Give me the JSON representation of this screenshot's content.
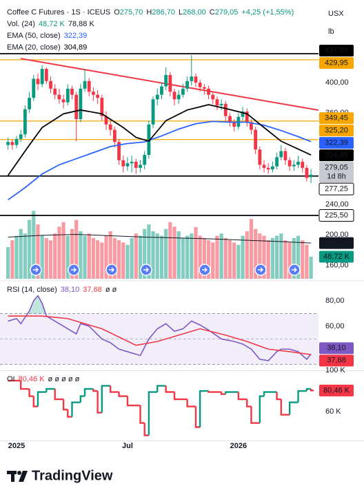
{
  "chart_data": [
    {
      "type": "candlestick",
      "title": "Coffee C Futures · 1S · ICEUS",
      "ohlc_header": [
        {
          "key": "O",
          "text": "275,70"
        },
        {
          "key": "H",
          "text": "286,70"
        },
        {
          "key": "L",
          "text": "268,00"
        },
        {
          "key": "C",
          "text": "279,05"
        }
      ],
      "change": "+4,25 (+1,55%)",
      "currency": "USX",
      "unit": "lb",
      "up_color": "#089981",
      "down_color": "#f23645",
      "xlim": [
        -3.88,
        70.76
      ],
      "xticks": [
        {
          "value": 0,
          "label": "2025"
        },
        {
          "value": 26,
          "label": "Jul"
        },
        {
          "value": 52,
          "label": "2026"
        }
      ],
      "ylim": [
        142.3,
        508.5
      ],
      "yticks": [
        {
          "value": 400,
          "label": "400,00"
        },
        {
          "value": 360,
          "label": "360,00"
        },
        {
          "value": 240,
          "label": "240,00"
        },
        {
          "value": 200,
          "label": "200,00"
        },
        {
          "value": 160,
          "label": "160,00"
        }
      ],
      "x": [
        -2,
        -1,
        0,
        1,
        2,
        3,
        4,
        5,
        6,
        7,
        8,
        9,
        10,
        11,
        12,
        13,
        14,
        15,
        16,
        17,
        18,
        19,
        20,
        21,
        22,
        23,
        24,
        25,
        26,
        27,
        28,
        29,
        30,
        31,
        32,
        33,
        34,
        35,
        36,
        37,
        38,
        39,
        40,
        41,
        42,
        43,
        44,
        45,
        46,
        47,
        48,
        49,
        50,
        51,
        52,
        53,
        54,
        55,
        56,
        57,
        58,
        59,
        60,
        61,
        62,
        63,
        64,
        65,
        66,
        67,
        68,
        69
      ],
      "ohlc": [
        [
          318,
          328,
          312,
          322
        ],
        [
          322,
          325,
          312,
          318
        ],
        [
          318,
          330,
          314,
          326
        ],
        [
          326,
          338,
          322,
          332
        ],
        [
          332,
          370,
          328,
          365
        ],
        [
          365,
          388,
          360,
          380
        ],
        [
          380,
          410,
          376,
          405
        ],
        [
          405,
          412,
          390,
          398
        ],
        [
          398,
          423,
          394,
          418
        ],
        [
          418,
          420,
          398,
          402
        ],
        [
          402,
          408,
          386,
          392
        ],
        [
          392,
          398,
          378,
          384
        ],
        [
          384,
          392,
          372,
          378
        ],
        [
          378,
          384,
          366,
          374
        ],
        [
          374,
          398,
          370,
          392
        ],
        [
          392,
          396,
          378,
          384
        ],
        [
          384,
          388,
          323,
          352
        ],
        [
          352,
          398,
          348,
          392
        ],
        [
          392,
          418,
          388,
          402
        ],
        [
          402,
          406,
          382,
          388
        ],
        [
          388,
          394,
          376,
          384
        ],
        [
          384,
          390,
          372,
          380
        ],
        [
          380,
          384,
          350,
          356
        ],
        [
          356,
          362,
          338,
          345
        ],
        [
          345,
          352,
          330,
          338
        ],
        [
          338,
          342,
          315,
          322
        ],
        [
          322,
          326,
          292,
          298
        ],
        [
          298,
          304,
          282,
          290
        ],
        [
          290,
          302,
          284,
          294
        ],
        [
          294,
          304,
          282,
          296
        ],
        [
          296,
          300,
          280,
          288
        ],
        [
          288,
          298,
          282,
          292
        ],
        [
          292,
          310,
          286,
          305
        ],
        [
          305,
          350,
          300,
          345
        ],
        [
          345,
          382,
          340,
          378
        ],
        [
          378,
          392,
          370,
          384
        ],
        [
          384,
          400,
          378,
          395
        ],
        [
          395,
          420,
          390,
          410
        ],
        [
          410,
          414,
          382,
          388
        ],
        [
          388,
          392,
          370,
          378
        ],
        [
          378,
          390,
          372,
          384
        ],
        [
          384,
          398,
          380,
          392
        ],
        [
          392,
          408,
          388,
          402
        ],
        [
          402,
          436,
          396,
          408
        ],
        [
          408,
          412,
          394,
          400
        ],
        [
          400,
          404,
          388,
          394
        ],
        [
          394,
          398,
          384,
          392
        ],
        [
          392,
          396,
          378,
          384
        ],
        [
          384,
          388,
          372,
          378
        ],
        [
          378,
          382,
          364,
          370
        ],
        [
          370,
          378,
          364,
          372
        ],
        [
          372,
          376,
          350,
          356
        ],
        [
          356,
          360,
          342,
          348
        ],
        [
          348,
          352,
          336,
          342
        ],
        [
          342,
          360,
          338,
          355
        ],
        [
          355,
          368,
          350,
          362
        ],
        [
          362,
          366,
          342,
          348
        ],
        [
          348,
          352,
          332,
          338
        ],
        [
          338,
          342,
          306,
          312
        ],
        [
          312,
          316,
          286,
          292
        ],
        [
          292,
          298,
          282,
          288
        ],
        [
          288,
          294,
          280,
          286
        ],
        [
          286,
          296,
          282,
          290
        ],
        [
          290,
          308,
          286,
          302
        ],
        [
          302,
          318,
          298,
          310
        ],
        [
          310,
          314,
          292,
          298
        ],
        [
          298,
          302,
          284,
          290
        ],
        [
          290,
          298,
          284,
          292
        ],
        [
          292,
          304,
          288,
          296
        ],
        [
          296,
          300,
          282,
          288
        ],
        [
          288,
          292,
          270,
          274.8
        ],
        [
          275.7,
          286.7,
          268,
          279.05
        ]
      ],
      "lines": [
        {
          "name": "EMA (50, close)",
          "color": "#2962ff",
          "last_label": "322,39",
          "x": [
            -2,
            2,
            6,
            10,
            14,
            18,
            22,
            26,
            30,
            34,
            38,
            42,
            46,
            50,
            54,
            58,
            62,
            66,
            69
          ],
          "values": [
            246,
            262,
            280,
            292,
            300,
            308,
            316,
            320,
            322,
            330,
            339,
            346,
            349,
            348,
            348,
            344,
            337,
            329,
            322.39
          ]
        },
        {
          "name": "EMA (20, close)",
          "color": "#000000",
          "last_label": "304,89",
          "x": [
            -2,
            3,
            6,
            11,
            15,
            20,
            25,
            28,
            31,
            35,
            40,
            45,
            49,
            54,
            58,
            62,
            69
          ],
          "values": [
            278,
            318,
            341,
            359,
            364,
            359,
            341,
            328,
            323,
            350,
            364,
            371,
            366,
            359,
            341,
            323,
            304.89
          ]
        }
      ],
      "levels": [
        {
          "value": 437.95,
          "label": "437,95",
          "color": "#000000",
          "style": "solid"
        },
        {
          "value": 429.95,
          "label": "429,95",
          "color": "#f7a600",
          "style": "solid"
        },
        {
          "value": 349.45,
          "label": "349,45",
          "color": "#f7a600",
          "style": "solid"
        },
        {
          "value": 325.2,
          "label": "325,20",
          "color": "#f7a600",
          "style": "solid"
        },
        {
          "value": 277.25,
          "label": "277,25",
          "color": "#000000",
          "style": "outline"
        },
        {
          "value": 225.5,
          "label": "225,50",
          "color": "#000000",
          "style": "outline"
        }
      ],
      "trendline": {
        "color": "#f23645",
        "x": [
          0.97,
          70.76
        ],
        "values": [
          431.6,
          363.8
        ]
      },
      "last_price": {
        "value": 279.05,
        "label": "279,05",
        "countdown": "1d 8h",
        "color": "#c7c9d1"
      },
      "volume": {
        "name": "Vol. (24)",
        "ylim": [
          0,
          152
        ],
        "last_label": "48,72 K",
        "values": [
          70,
          85,
          95,
          110,
          100,
          130,
          150,
          120,
          95,
          90,
          85,
          100,
          115,
          125,
          95,
          110,
          130,
          105,
          95,
          100,
          90,
          85,
          80,
          95,
          105,
          90,
          85,
          80,
          75,
          90,
          100,
          95,
          110,
          120,
          105,
          100,
          95,
          110,
          125,
          115,
          105,
          90,
          95,
          100,
          114,
          95,
          90,
          85,
          80,
          95,
          100,
          90,
          85,
          80,
          75,
          95,
          105,
          132,
          110,
          100,
          95,
          85,
          90,
          95,
          100,
          85,
          80,
          90,
          95,
          85,
          75,
          48.72
        ],
        "ma": {
          "label": "78,88 K",
          "color": "#131722",
          "x": [
            -2,
            6,
            14,
            22,
            30,
            38,
            46,
            54,
            62,
            69
          ],
          "values": [
            92,
            96,
            98,
            95,
            92,
            90,
            88,
            85,
            82,
            78.88
          ]
        }
      }
    },
    {
      "type": "line",
      "title": "RSI (14, close)",
      "extra": "ø  ø",
      "ylim": [
        25.9,
        94.6
      ],
      "yticks": [
        {
          "value": 80,
          "label": "80,00"
        },
        {
          "value": 60,
          "label": "60,00"
        }
      ],
      "bands": {
        "upper": 70,
        "middle": 50,
        "lower": 30,
        "color": "#7e57c2"
      },
      "series": [
        {
          "name": "RSI",
          "color": "#7e57c2",
          "last_label": "38,10",
          "x": [
            -2,
            0,
            1,
            3,
            4,
            5,
            6,
            7,
            9,
            12,
            14,
            15,
            17,
            20,
            22,
            24,
            26,
            29,
            31,
            33,
            35,
            37,
            39,
            41,
            43,
            45,
            48,
            51,
            53,
            55,
            57,
            59,
            61,
            62,
            64,
            66,
            67,
            68,
            69
          ],
          "values": [
            64,
            66,
            62,
            72,
            80,
            84,
            78,
            68,
            64,
            58,
            54,
            62,
            60,
            50,
            47,
            42,
            40,
            37,
            50,
            58,
            62,
            56,
            58,
            64,
            61,
            57,
            50,
            48,
            46,
            42,
            34,
            33,
            40,
            42,
            42,
            40,
            37,
            34,
            38.1
          ]
        },
        {
          "name": "RSI MA",
          "color": "#f23645",
          "last_label": "37,68",
          "x": [
            -2,
            6,
            12,
            20,
            28,
            33,
            38,
            43,
            49,
            54,
            59,
            64,
            69
          ],
          "values": [
            68,
            68,
            66,
            58,
            45,
            48,
            53,
            58,
            53,
            48,
            42,
            40,
            37.68
          ]
        }
      ]
    },
    {
      "type": "step",
      "title": "OI",
      "extra": "ø  ø  ø  ø  ø",
      "up_color": "#089981",
      "down_color": "#f23645",
      "ylim": [
        32,
        98.7
      ],
      "yticks": [
        {
          "value": 100,
          "label": "100 K"
        },
        {
          "value": 60,
          "label": "60 K"
        }
      ],
      "last_label": "80,46 K",
      "x": [
        -2,
        0,
        1,
        3,
        4,
        5,
        7,
        8,
        9,
        11,
        12,
        13,
        15,
        16,
        18,
        19,
        20,
        22,
        24,
        26,
        29,
        30,
        31,
        33,
        35,
        37,
        40,
        42,
        43,
        45,
        48,
        49,
        52,
        54,
        55,
        57,
        58,
        61,
        62,
        64,
        66,
        68,
        69
      ],
      "values": [
        90,
        90,
        82,
        75,
        65,
        79,
        82,
        82,
        72,
        62,
        55,
        69,
        75,
        82,
        80,
        59,
        85,
        79,
        75,
        66,
        49,
        37,
        79,
        85,
        79,
        72,
        65,
        45,
        80,
        79,
        77,
        79,
        72,
        65,
        49,
        75,
        79,
        72,
        57,
        69,
        80,
        82,
        80.46
      ]
    }
  ],
  "footer": {
    "brand": "TradingView"
  }
}
